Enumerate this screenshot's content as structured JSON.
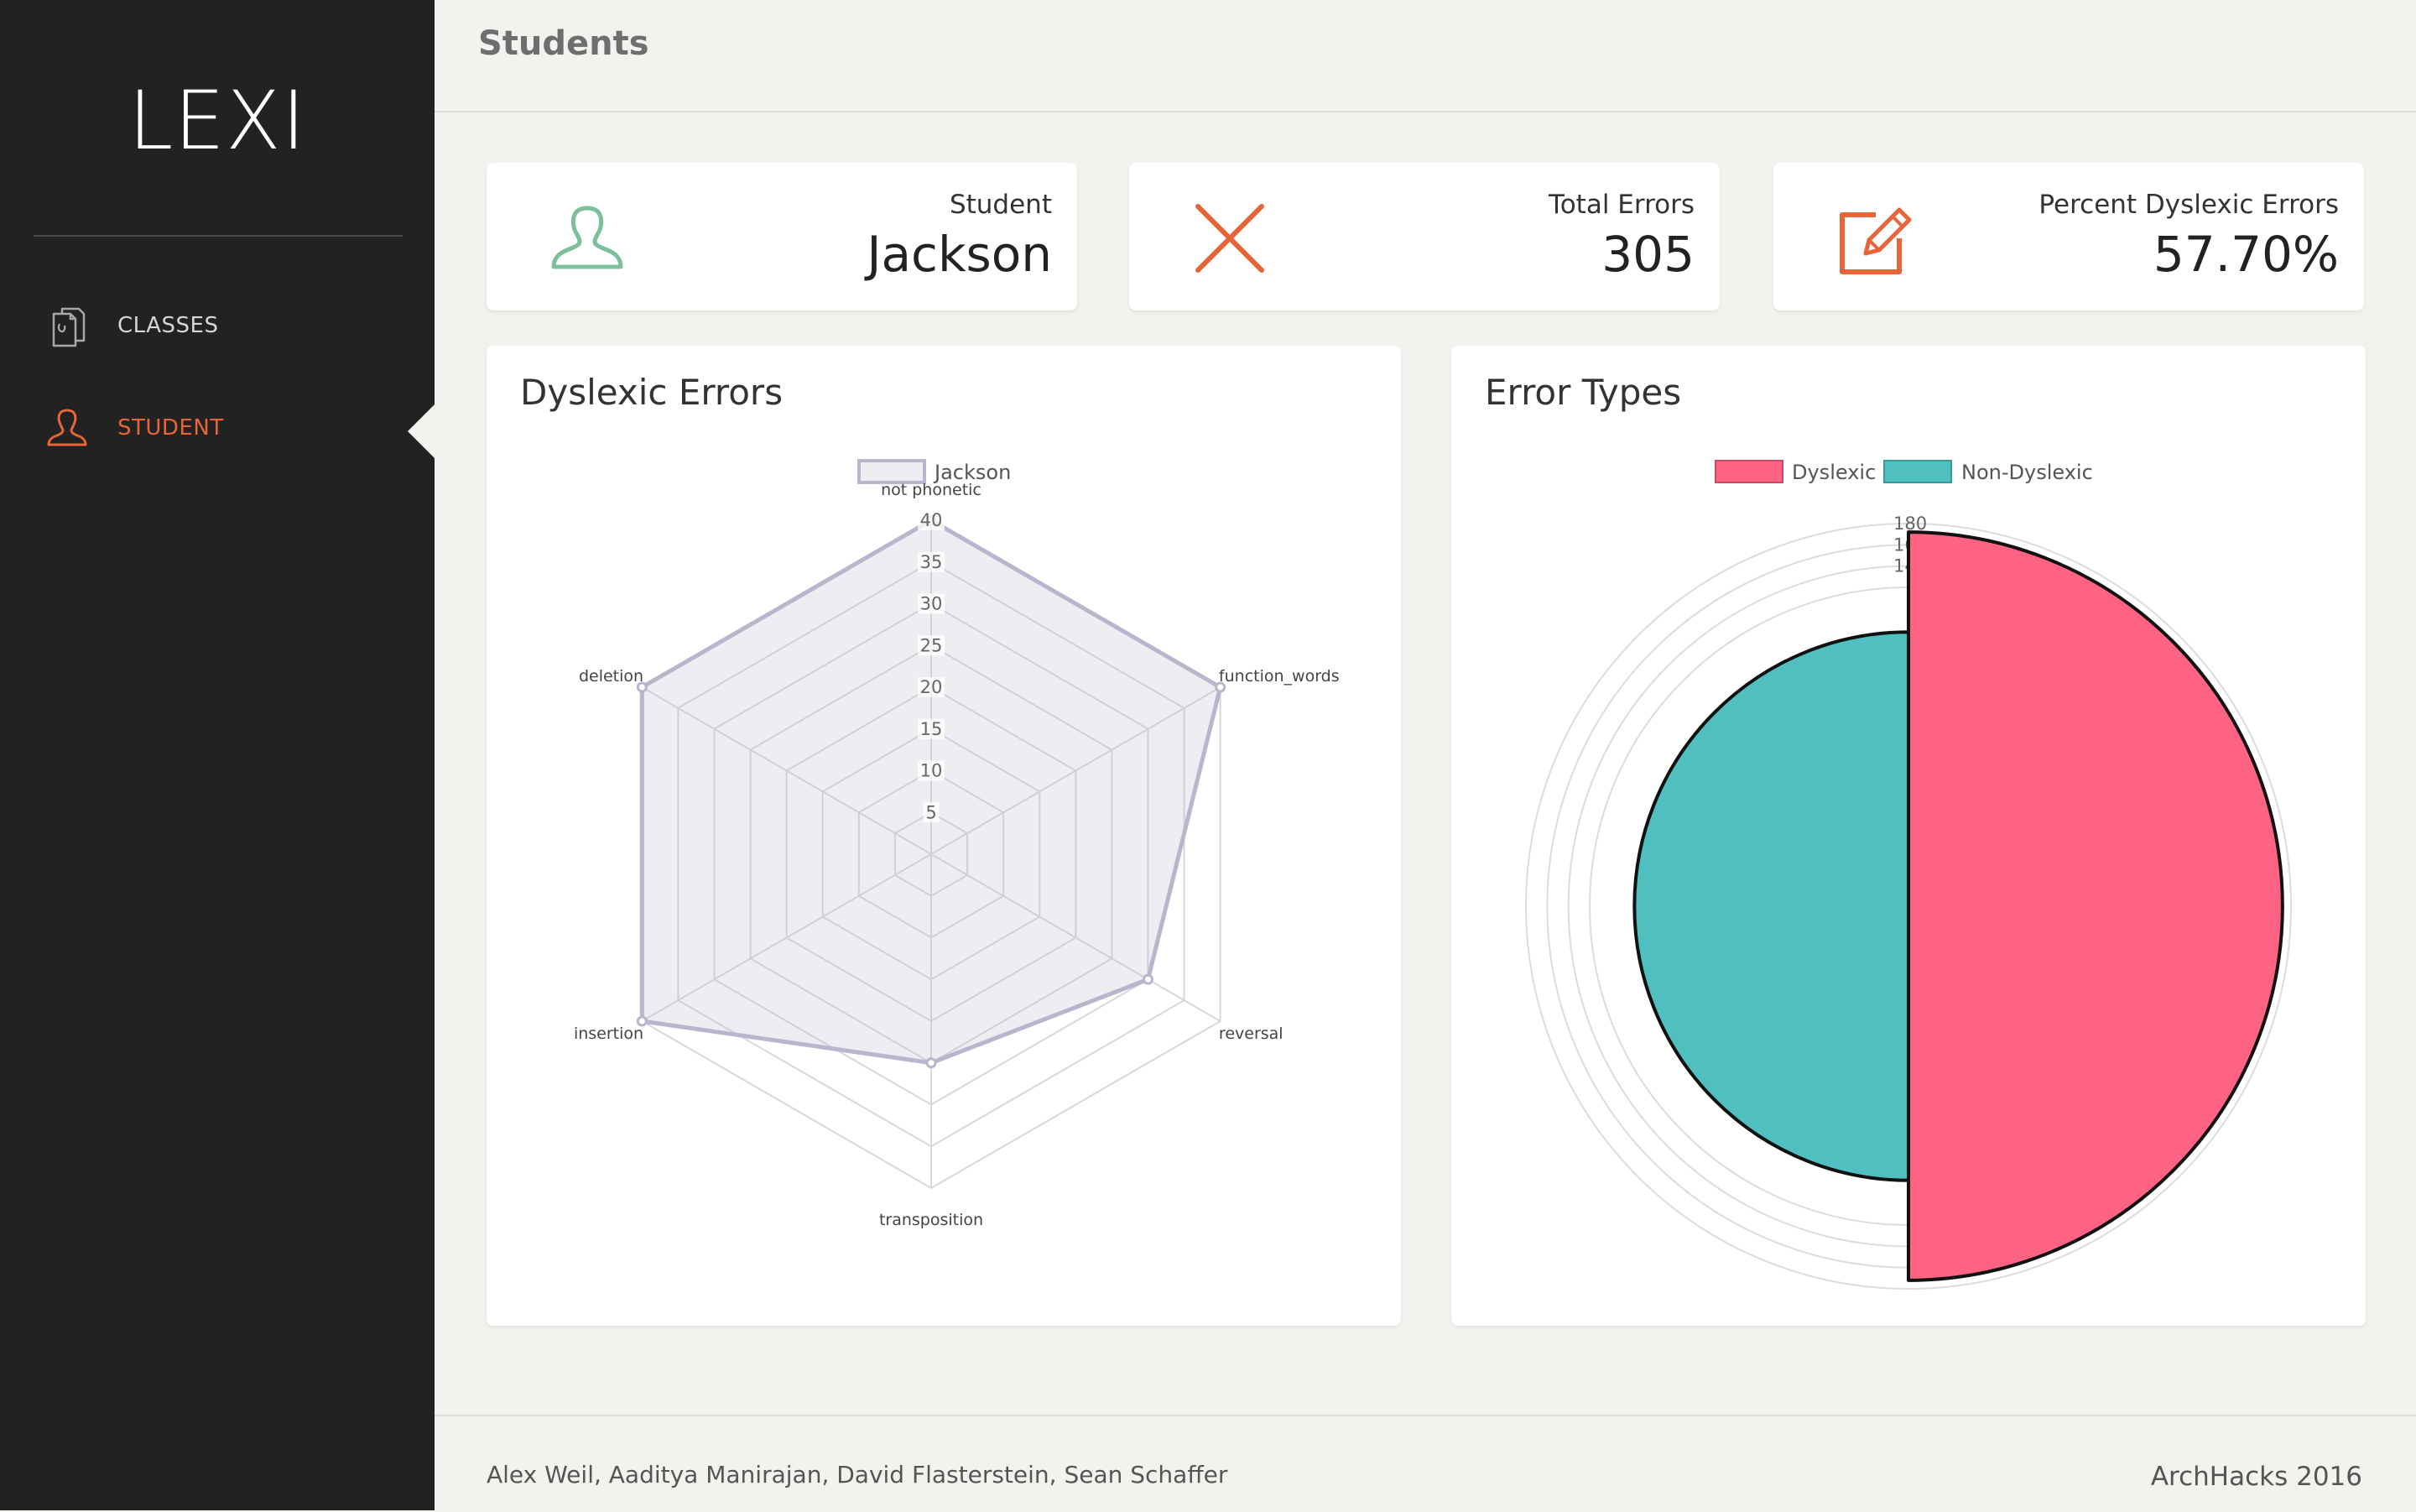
{
  "app": {
    "logo": "LEXI"
  },
  "sidebar": {
    "items": [
      {
        "label": "CLASSES",
        "icon": "documents-icon",
        "active": false
      },
      {
        "label": "STUDENT",
        "icon": "user-icon",
        "active": true
      }
    ]
  },
  "header": {
    "title": "Students"
  },
  "stats": [
    {
      "title": "Student",
      "value": "Jackson",
      "icon": "user-outline-icon",
      "color": "#7cc09a"
    },
    {
      "title": "Total Errors",
      "value": "305",
      "icon": "close-x-icon",
      "color": "#e8653a"
    },
    {
      "title": "Percent Dyslexic Errors",
      "value": "57.70%",
      "icon": "edit-pencil-icon",
      "color": "#e8653a"
    }
  ],
  "charts": {
    "radar_title": "Dyslexic Errors",
    "polar_title": "Error Types"
  },
  "chart_data": [
    {
      "type": "radar",
      "title": "Dyslexic Errors",
      "categories": [
        "not phonetic",
        "function_words",
        "reversal",
        "transposition",
        "insertion",
        "deletion"
      ],
      "series": [
        {
          "name": "Jackson",
          "values": [
            40,
            40,
            30,
            25,
            40,
            40
          ],
          "color": "#b8b6cc"
        }
      ],
      "rlim": [
        0,
        40
      ],
      "ticks": [
        "5",
        "10",
        "15",
        "20",
        "25",
        "30",
        "35",
        "40"
      ],
      "legend": "top"
    },
    {
      "type": "polar-area",
      "title": "Error Types",
      "categories": [
        "Dyslexic",
        "Non-Dyslexic"
      ],
      "values": [
        176,
        129
      ],
      "colors": [
        "#ff6384",
        "#4fbfbf"
      ],
      "rlim": [
        0,
        180
      ],
      "ticks": [
        "180",
        "16",
        "14"
      ],
      "legend": "top"
    }
  ],
  "footer": {
    "credits": "Alex Weil, Aaditya Manirajan, David Flasterstein, Sean Schaffer",
    "event": "ArchHacks 2016"
  }
}
